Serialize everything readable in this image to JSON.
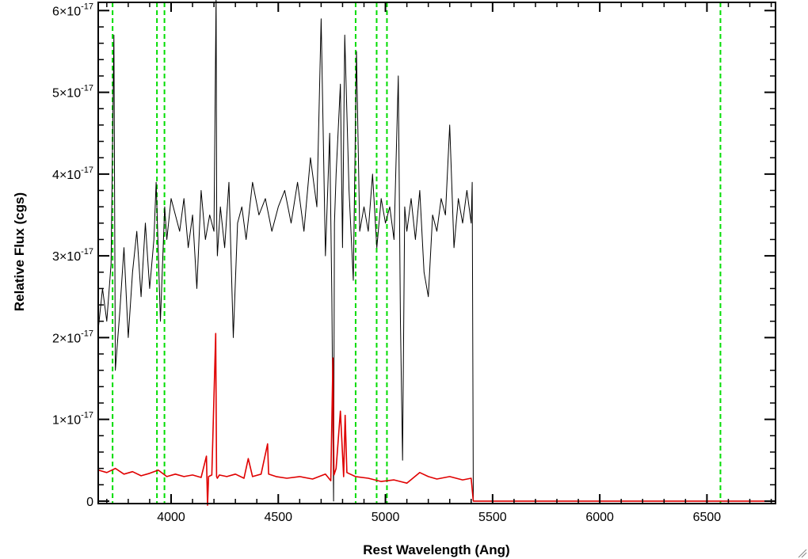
{
  "chart_data": {
    "type": "line",
    "xlabel": "Rest Wavelength (Ang)",
    "ylabel": "Relative Flux (cgs)",
    "xlim": [
      3660,
      6820
    ],
    "ylim": [
      -3e-19,
      6.1e-17
    ],
    "x_ticks": [
      4000,
      4500,
      5000,
      5500,
      6000,
      6500
    ],
    "x_tick_labels": [
      "4000",
      "4500",
      "5000",
      "5500",
      "6000",
      "6500"
    ],
    "y_ticks": [
      0,
      1e-17,
      2e-17,
      3e-17,
      4e-17,
      5e-17,
      6e-17
    ],
    "y_tick_labels": [
      {
        "mant": "0",
        "exp": ""
      },
      {
        "mant": "1×10",
        "exp": "-17"
      },
      {
        "mant": "2×10",
        "exp": "-17"
      },
      {
        "mant": "3×10",
        "exp": "-17"
      },
      {
        "mant": "4×10",
        "exp": "-17"
      },
      {
        "mant": "5×10",
        "exp": "-17"
      },
      {
        "mant": "6×10",
        "exp": "-17"
      }
    ],
    "grid": false,
    "legend": "none",
    "series": [
      {
        "color": "#000000",
        "x": [
          3660,
          3680,
          3700,
          3720,
          3733,
          3740,
          3760,
          3780,
          3800,
          3820,
          3840,
          3860,
          3880,
          3900,
          3920,
          3930,
          3950,
          3970,
          3980,
          4000,
          4020,
          4040,
          4060,
          4080,
          4100,
          4120,
          4140,
          4160,
          4180,
          4200,
          4210,
          4213,
          4216,
          4230,
          4250,
          4270,
          4290,
          4310,
          4330,
          4350,
          4380,
          4410,
          4440,
          4470,
          4500,
          4530,
          4560,
          4590,
          4620,
          4650,
          4680,
          4700,
          4720,
          4740,
          4750,
          4758,
          4762,
          4770,
          4790,
          4800,
          4810,
          4830,
          4850,
          4865,
          4880,
          4900,
          4920,
          4940,
          4960,
          4980,
          5000,
          5020,
          5040,
          5060,
          5070,
          5080,
          5090,
          5100,
          5120,
          5140,
          5160,
          5180,
          5200,
          5220,
          5240,
          5260,
          5280,
          5300,
          5320,
          5340,
          5360,
          5380,
          5400,
          5405,
          5410,
          6820
        ],
        "values": [
          2.1e-17,
          2.6e-17,
          2.2e-17,
          2.9e-17,
          5.7e-17,
          1.6e-17,
          2.3e-17,
          3.1e-17,
          2e-17,
          2.8e-17,
          3.3e-17,
          2.5e-17,
          3.4e-17,
          2.6e-17,
          3.2e-17,
          3.9e-17,
          2.2e-17,
          3.6e-17,
          3.2e-17,
          3.7e-17,
          3.5e-17,
          3.3e-17,
          3.7e-17,
          3.1e-17,
          3.5e-17,
          2.6e-17,
          3.8e-17,
          3.2e-17,
          3.5e-17,
          3.3e-17,
          6.2e-17,
          3.4e-17,
          3e-17,
          3.6e-17,
          3.1e-17,
          3.9e-17,
          2e-17,
          3.4e-17,
          3.6e-17,
          3.2e-17,
          3.9e-17,
          3.5e-17,
          3.7e-17,
          3.3e-17,
          3.6e-17,
          3.8e-17,
          3.4e-17,
          3.9e-17,
          3.3e-17,
          4.2e-17,
          3.6e-17,
          5.9e-17,
          3e-17,
          4.5e-17,
          2.5e-17,
          0.0,
          3.4e-17,
          4e-17,
          5.1e-17,
          3.1e-17,
          5.7e-17,
          3.8e-17,
          2.7e-17,
          5.5e-17,
          3.3e-17,
          3.6e-17,
          3.3e-17,
          4e-17,
          3.1e-17,
          3.7e-17,
          3.4e-17,
          3.6e-17,
          3.2e-17,
          5.2e-17,
          2.2e-17,
          5e-18,
          3.6e-17,
          3.3e-17,
          3.7e-17,
          3.2e-17,
          3.8e-17,
          2.8e-17,
          2.5e-17,
          3.5e-17,
          3.3e-17,
          3.7e-17,
          3.5e-17,
          4.6e-17,
          3.1e-17,
          3.7e-17,
          3.4e-17,
          3.8e-17,
          3.4e-17,
          3.9e-17,
          0.0,
          0.0
        ]
      },
      {
        "color": "#e00000",
        "x": [
          3660,
          3700,
          3740,
          3780,
          3820,
          3860,
          3900,
          3940,
          3980,
          4020,
          4060,
          4100,
          4140,
          4165,
          4170,
          4175,
          4190,
          4208,
          4212,
          4216,
          4225,
          4260,
          4300,
          4340,
          4360,
          4380,
          4420,
          4450,
          4455,
          4490,
          4540,
          4600,
          4660,
          4720,
          4745,
          4755,
          4760,
          4770,
          4790,
          4805,
          4812,
          4820,
          4860,
          4920,
          4980,
          5040,
          5100,
          5160,
          5200,
          5240,
          5300,
          5360,
          5400,
          5410,
          6820
        ],
        "values": [
          3.8e-18,
          3.5e-18,
          4e-18,
          3.3e-18,
          3.6e-18,
          3.1e-18,
          3.4e-18,
          3.8e-18,
          3e-18,
          3.3e-18,
          3e-18,
          3.2e-18,
          2.9e-18,
          5.5e-18,
          -5e-19,
          3e-18,
          3.2e-18,
          2.05e-17,
          3e-18,
          2.8e-18,
          3.2e-18,
          3e-18,
          3.3e-18,
          2.8e-18,
          5.2e-18,
          3e-18,
          3.3e-18,
          7e-18,
          3.3e-18,
          3e-18,
          2.8e-18,
          3e-18,
          2.7e-18,
          3.3e-18,
          2.5e-18,
          1.75e-17,
          3.2e-18,
          4e-18,
          1.1e-17,
          3e-18,
          1.05e-17,
          3.5e-18,
          3e-18,
          2.8e-18,
          2.4e-18,
          2.6e-18,
          2.2e-18,
          3.5e-18,
          3e-18,
          2.7e-18,
          3e-18,
          2.6e-18,
          2.8e-18,
          0.0,
          0.0
        ]
      }
    ],
    "vertical_markers": {
      "color": "#00dd00",
      "style": "dashed",
      "x": [
        3727,
        3934,
        3969,
        4861,
        4959,
        5007,
        6563
      ]
    }
  }
}
